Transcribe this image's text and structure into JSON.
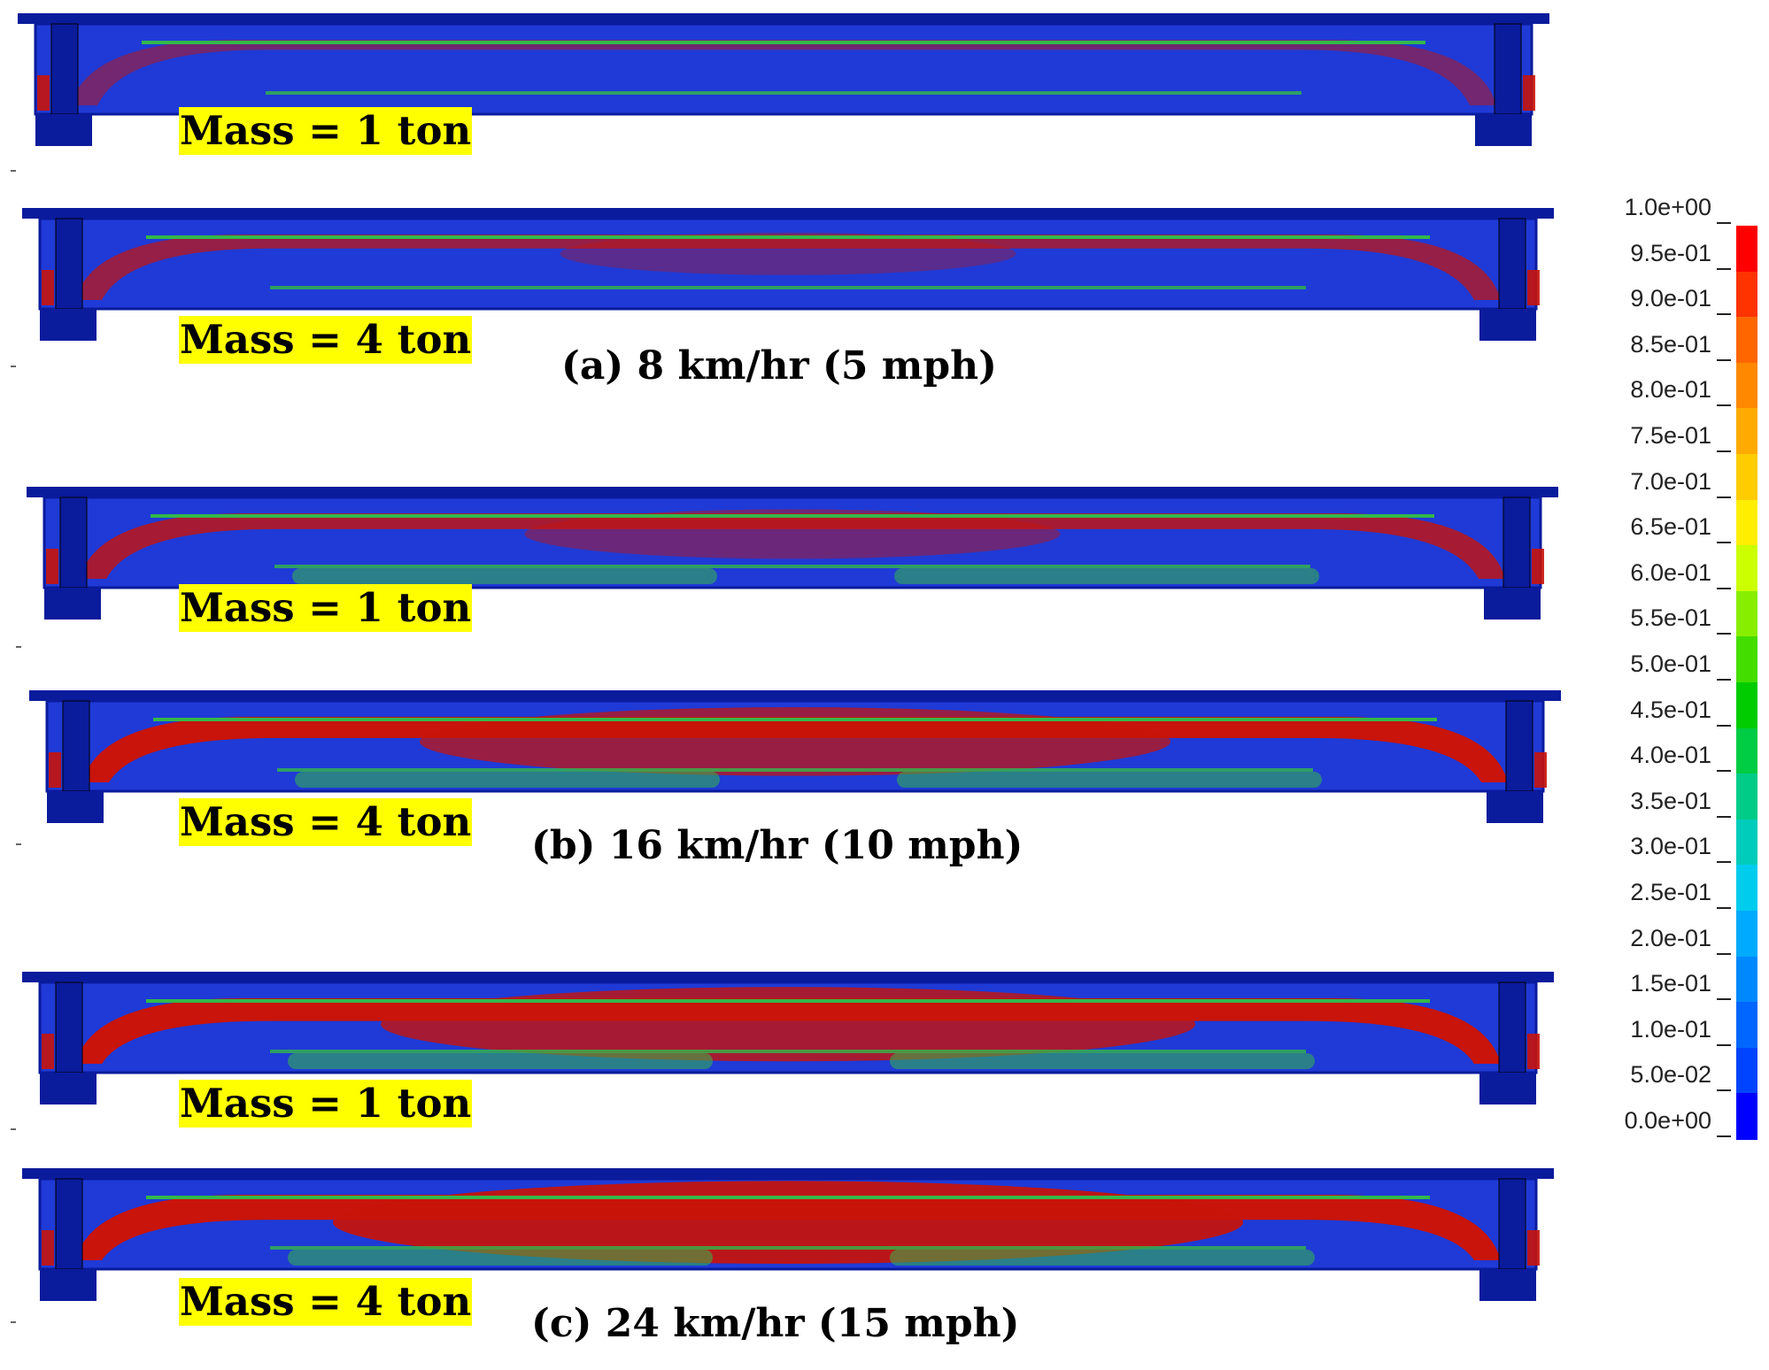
{
  "panels": [
    {
      "mass_label": "Mass = 1 ton",
      "damage": 0.15
    },
    {
      "mass_label": "Mass = 4 ton",
      "damage": 0.35
    },
    {
      "mass_label": "Mass = 1 ton",
      "damage": 0.45
    },
    {
      "mass_label": "Mass = 4 ton",
      "damage": 0.72
    },
    {
      "mass_label": "Mass = 1 ton",
      "damage": 0.8
    },
    {
      "mass_label": "Mass = 4 ton",
      "damage": 0.92
    }
  ],
  "captions": [
    "(a) 8 km/hr (5 mph)",
    "(b) 16 km/hr (10 mph)",
    "(c) 24 km/hr (15 mph)"
  ],
  "legend": {
    "labels": [
      "1.0e+00",
      "9.5e-01",
      "9.0e-01",
      "8.5e-01",
      "8.0e-01",
      "7.5e-01",
      "7.0e-01",
      "6.5e-01",
      "6.0e-01",
      "5.5e-01",
      "5.0e-01",
      "4.5e-01",
      "4.0e-01",
      "3.5e-01",
      "3.0e-01",
      "2.5e-01",
      "2.0e-01",
      "1.5e-01",
      "1.0e-01",
      "5.0e-02",
      "0.0e+00"
    ],
    "colors": [
      "#ff0000",
      "#ff3300",
      "#ff6600",
      "#ff8800",
      "#ffaa00",
      "#ffcc00",
      "#ffee00",
      "#ccff00",
      "#88ee00",
      "#44dd00",
      "#00cc00",
      "#00cc44",
      "#00cc88",
      "#00ccbb",
      "#00ccee",
      "#00aaff",
      "#0088ff",
      "#0066ff",
      "#0044ff",
      "#0000ff"
    ]
  },
  "colors": {
    "deep_blue": "#0a1b9c",
    "mid_blue": "#1f3ad6",
    "damage_red": "#c8140a",
    "green": "#33b84a",
    "highlight": "#ffff00"
  }
}
